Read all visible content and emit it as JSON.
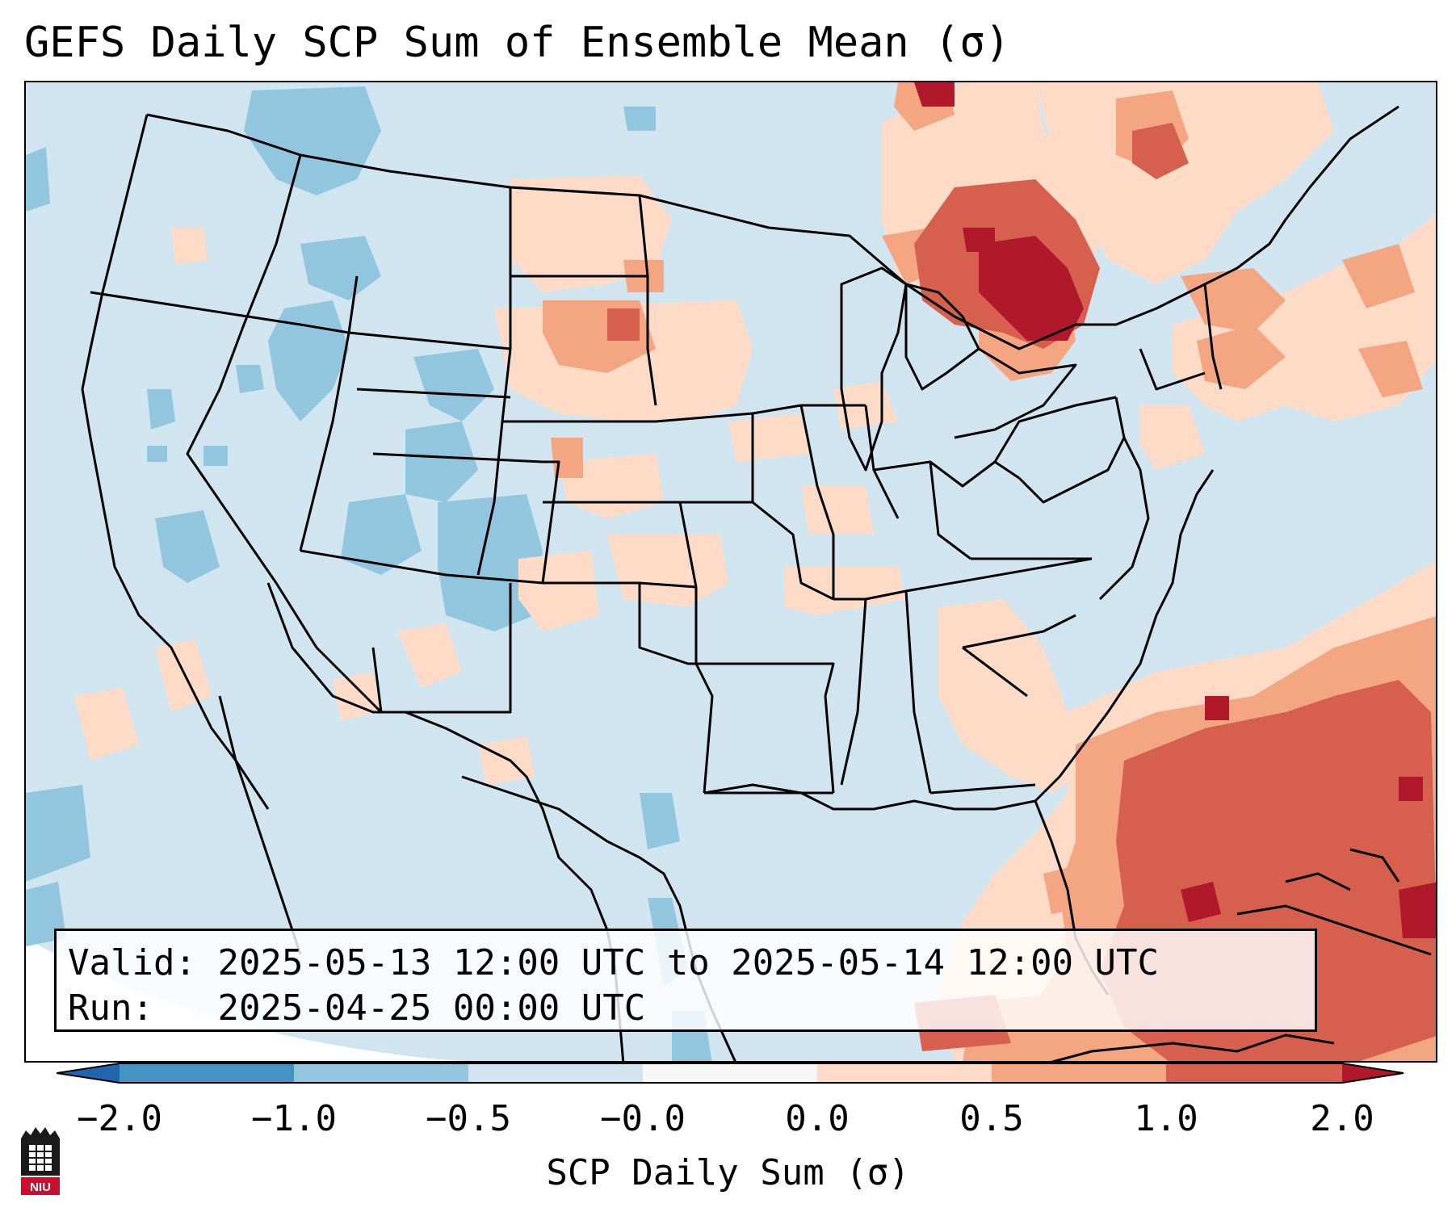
{
  "title": "GEFS Daily SCP Sum of Ensemble Mean (σ)",
  "info": {
    "valid_label": "Valid:",
    "valid_value": "2025-05-13 12:00 UTC to 2025-05-14 12:00 UTC",
    "run_label": "Run:",
    "run_value": "2025-04-25 00:00 UTC"
  },
  "colorbar": {
    "label": "SCP Daily Sum (σ)",
    "ticks": [
      "−2.0",
      "−1.0",
      "−0.5",
      "−0.0",
      "0.0",
      "0.5",
      "1.0",
      "2.0"
    ],
    "colors": [
      "#2166ac",
      "#4393c3",
      "#92c5de",
      "#d1e5f0",
      "#f7f7f7",
      "#fddbc7",
      "#f4a582",
      "#d6604d",
      "#b2182b"
    ]
  },
  "logo_text": "NIU",
  "chart_data": {
    "type": "heatmap",
    "title": "GEFS Daily SCP Sum of Ensemble Mean (σ)",
    "colorbar_label": "SCP Daily Sum (σ)",
    "levels": [
      -2.0,
      -1.0,
      -0.5,
      -0.0,
      0.0,
      0.5,
      1.0,
      2.0
    ],
    "extend": "both"
  }
}
